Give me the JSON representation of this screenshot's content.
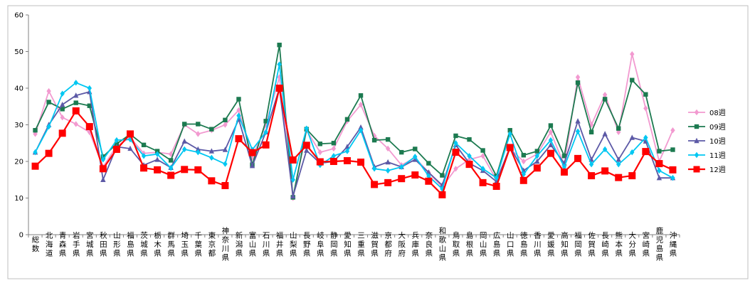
{
  "chart_data": {
    "type": "line",
    "ylim": [
      0,
      60
    ],
    "yticks": [
      0,
      10,
      20,
      30,
      40,
      50,
      60
    ],
    "grid": false,
    "legend_position": "right",
    "categories": [
      "総数",
      "北海道",
      "青森県",
      "岩手県",
      "宮城県",
      "秋田県",
      "山形県",
      "福島県",
      "茨城県",
      "栃木県",
      "群馬県",
      "埼玉県",
      "千葉県",
      "東京都",
      "神奈川県",
      "新潟県",
      "富山県",
      "石川県",
      "福井県",
      "山梨県",
      "長野県",
      "岐阜県",
      "静岡県",
      "愛知県",
      "三重県",
      "滋賀県",
      "京都府",
      "大阪府",
      "兵庫県",
      "奈良県",
      "和歌山県",
      "鳥取県",
      "島根県",
      "岡山県",
      "広島県",
      "山口県",
      "徳島県",
      "香川県",
      "愛媛県",
      "高知県",
      "福岡県",
      "佐賀県",
      "長崎県",
      "熊本県",
      "大分県",
      "宮崎県",
      "鹿児島県",
      "沖縄県"
    ],
    "series": [
      {
        "name": "08週",
        "color": "#f29ad0",
        "marker": "diamond",
        "values": [
          27.5,
          39.2,
          32.0,
          30.2,
          28.0,
          18.5,
          24.2,
          26.5,
          22.2,
          22.5,
          22.0,
          30.0,
          27.5,
          28.5,
          30.0,
          34.0,
          21.0,
          30.0,
          43.0,
          10.0,
          28.5,
          22.5,
          23.5,
          31.0,
          35.5,
          27.0,
          23.5,
          19.0,
          21.0,
          17.0,
          13.0,
          18.0,
          20.5,
          21.5,
          15.0,
          23.5,
          20.0,
          22.0,
          28.0,
          19.0,
          43.0,
          30.0,
          38.2,
          28.0,
          49.3,
          34.5,
          20.0,
          28.5
        ]
      },
      {
        "name": "09週",
        "color": "#1c7a50",
        "marker": "square",
        "values": [
          28.5,
          36.2,
          34.3,
          36.0,
          35.2,
          21.3,
          24.8,
          27.4,
          24.5,
          22.8,
          20.3,
          30.2,
          30.2,
          28.8,
          31.3,
          37.0,
          19.1,
          31.0,
          51.8,
          10.2,
          28.8,
          24.8,
          25.0,
          31.5,
          38.0,
          25.8,
          26.0,
          22.5,
          23.4,
          19.5,
          16.2,
          27.0,
          26.0,
          23.0,
          16.0,
          28.5,
          21.7,
          22.8,
          29.8,
          21.5,
          41.5,
          28.0,
          37.0,
          29.0,
          42.2,
          38.3,
          22.8,
          23.2
        ]
      },
      {
        "name": "10週",
        "color": "#5c59a6",
        "marker": "triangle",
        "values": [
          22.5,
          30.0,
          35.5,
          38.0,
          39.0,
          15.0,
          24.0,
          23.5,
          19.0,
          20.5,
          18.3,
          25.5,
          23.3,
          22.8,
          23.2,
          31.5,
          18.8,
          28.0,
          40.0,
          10.5,
          23.0,
          19.5,
          20.0,
          24.0,
          29.3,
          18.5,
          19.8,
          18.5,
          20.5,
          17.0,
          13.5,
          24.5,
          19.5,
          17.5,
          14.5,
          24.0,
          17.5,
          20.0,
          24.5,
          19.5,
          31.0,
          20.5,
          27.5,
          20.5,
          26.5,
          25.5,
          15.5,
          15.5
        ]
      },
      {
        "name": "11週",
        "color": "#00c7f2",
        "marker": "diamond",
        "values": [
          22.5,
          29.5,
          38.5,
          41.5,
          40.0,
          20.5,
          25.8,
          26.0,
          21.5,
          22.0,
          18.2,
          23.3,
          22.5,
          21.0,
          19.3,
          32.5,
          23.2,
          28.0,
          46.5,
          15.0,
          29.0,
          19.0,
          21.5,
          22.8,
          28.5,
          18.0,
          17.5,
          18.5,
          21.3,
          16.0,
          12.5,
          25.0,
          21.5,
          18.0,
          15.5,
          27.5,
          16.5,
          21.5,
          25.8,
          18.5,
          28.2,
          19.2,
          23.3,
          19.2,
          22.5,
          26.5,
          17.5,
          15.5
        ]
      },
      {
        "name": "12週",
        "color": "#ff0000",
        "marker": "square",
        "values": [
          18.7,
          22.2,
          27.7,
          33.8,
          29.5,
          18.0,
          23.3,
          27.5,
          18.2,
          17.7,
          16.2,
          17.8,
          17.7,
          14.7,
          13.4,
          26.2,
          22.4,
          24.5,
          40.0,
          20.4,
          24.4,
          19.9,
          20.0,
          20.2,
          19.8,
          13.7,
          14.2,
          15.3,
          16.3,
          14.6,
          10.9,
          22.5,
          19.2,
          14.2,
          13.2,
          23.8,
          14.8,
          18.2,
          22.2,
          17.1,
          20.8,
          16.1,
          17.4,
          15.6,
          16.1,
          22.7,
          19.4,
          17.7
        ]
      }
    ]
  }
}
